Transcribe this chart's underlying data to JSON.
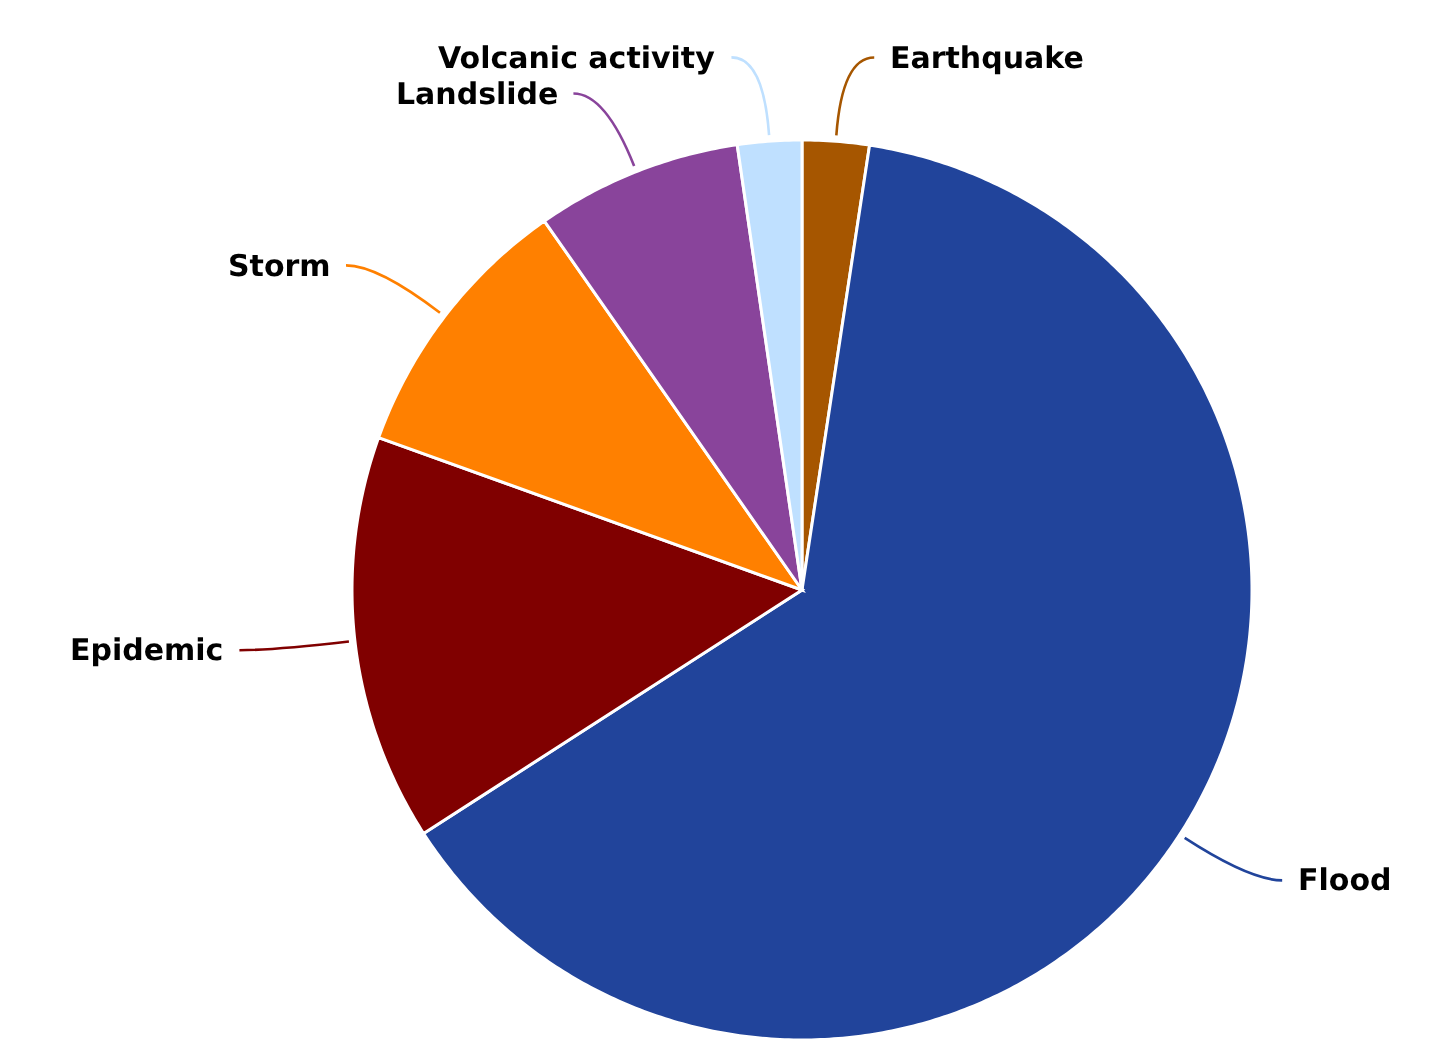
{
  "chart_data": {
    "type": "pie",
    "categories": [
      "Earthquake",
      "Flood",
      "Epidemic",
      "Storm",
      "Landslide",
      "Volcanic activity"
    ],
    "values": [
      2.4,
      63.5,
      14.6,
      9.8,
      7.4,
      2.3
    ],
    "colors": [
      "#a65600",
      "#21449b",
      "#800000",
      "#ff8000",
      "#89449b",
      "#bfe0ff"
    ]
  }
}
